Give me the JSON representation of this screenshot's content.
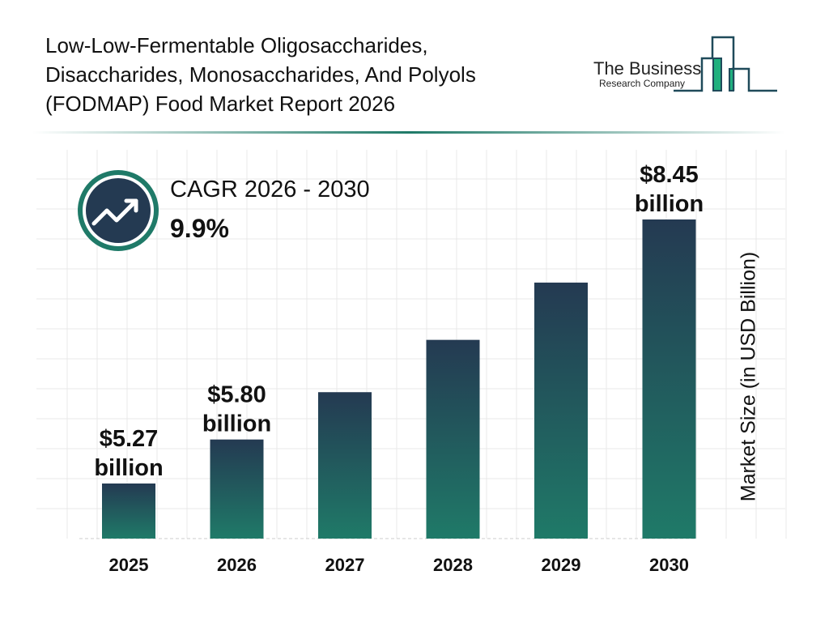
{
  "header": {
    "title_lines": [
      "Low-Low-Fermentable Oligosaccharides,",
      "Disaccharides, Monosaccharides, And Polyols",
      "(FODMAP) Food Market Report 2026"
    ],
    "logo": {
      "line1": "The Business",
      "line2": "Research Company"
    }
  },
  "cagr": {
    "label": "CAGR 2026 - 2030",
    "value": "9.9%",
    "icon": "trending-up-icon"
  },
  "colors": {
    "bar_top": "#243a52",
    "bar_bottom": "#1f7a68",
    "ring": "#1f7a68",
    "circle": "#243a52"
  },
  "chart_data": {
    "type": "bar",
    "categories": [
      "2025",
      "2026",
      "2027",
      "2028",
      "2029",
      "2030"
    ],
    "values": [
      5.27,
      5.8,
      6.37,
      7.0,
      7.69,
      8.45
    ],
    "data_labels": [
      "$5.27 billion",
      "$5.80 billion",
      "",
      "",
      "",
      "$8.45 billion"
    ],
    "ylabel": "Market Size (in USD Billion)",
    "grid": true
  }
}
